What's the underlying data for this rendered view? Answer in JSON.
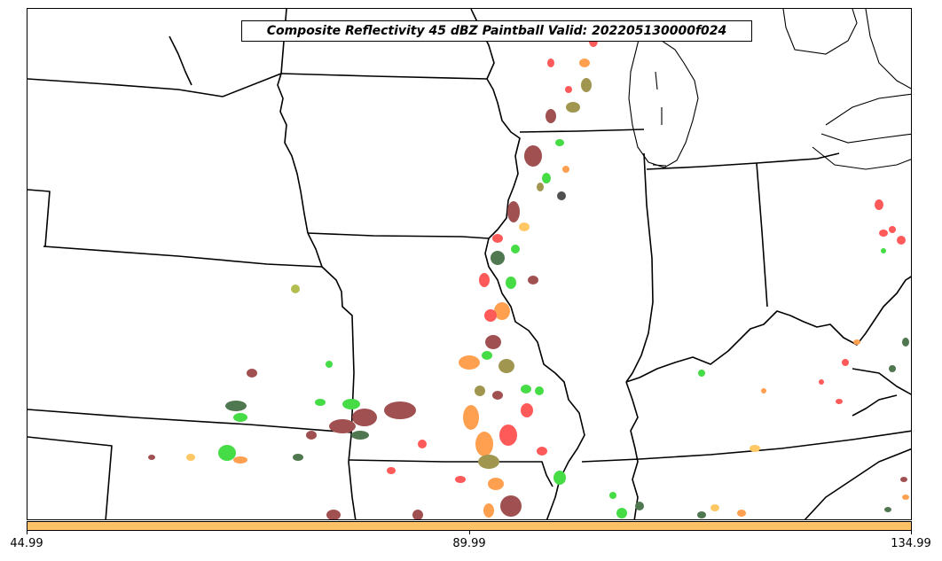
{
  "title": "Composite Reflectivity 45 dBZ Paintball Valid: 202205130000f024",
  "colorbar": {
    "color": "#ffc266",
    "ticks": [
      "44.99",
      "89.99",
      "134.99"
    ]
  },
  "paintball_colors": {
    "red": "#ff5a5a",
    "brown": "#a05050",
    "olive": "#a09650",
    "green": "#46dc46",
    "dark_green": "#507850",
    "orange": "#ffa050",
    "light_orange": "#ffc864",
    "yellow_green": "#b4be50",
    "dark_gray": "#505050"
  }
}
